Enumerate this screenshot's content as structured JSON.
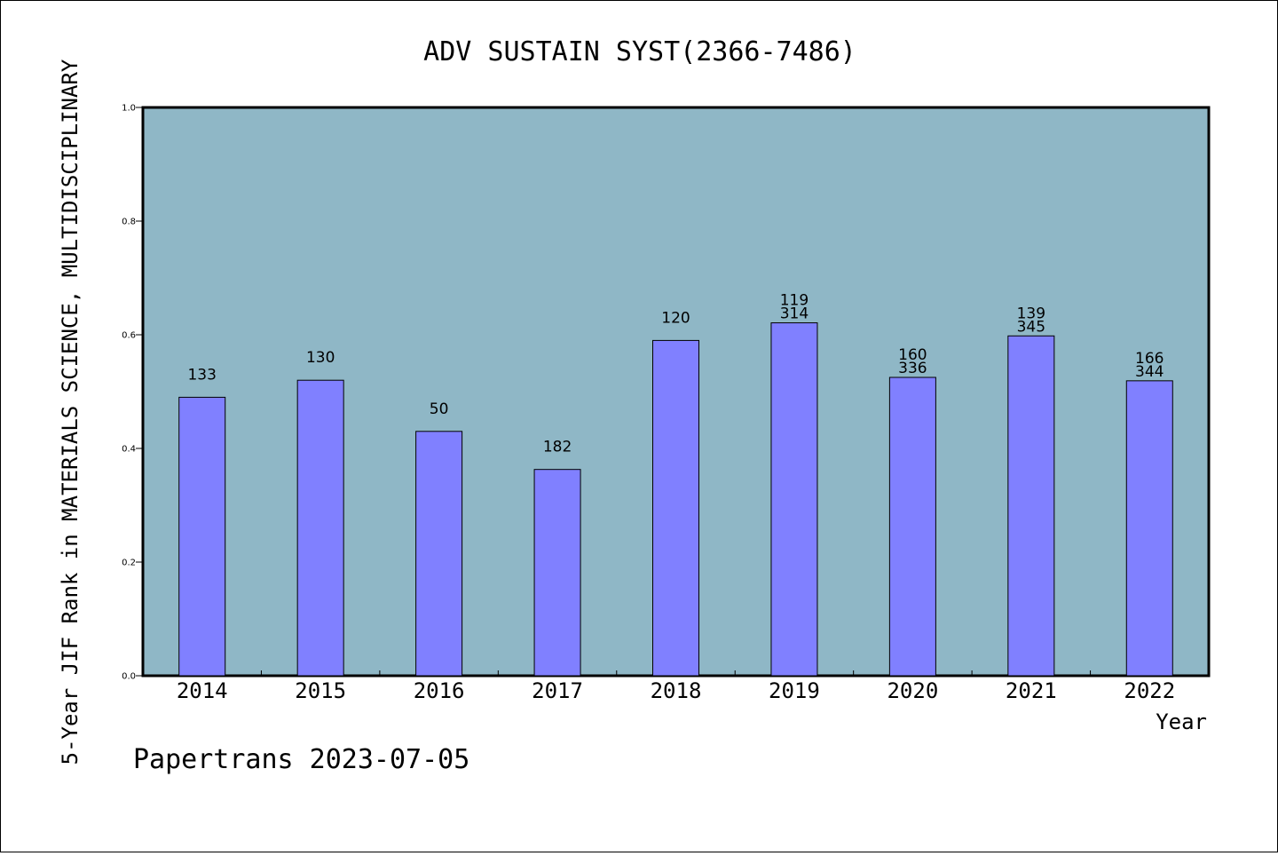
{
  "chart_data": {
    "type": "bar",
    "title": "ADV SUSTAIN SYST(2366-7486)",
    "xlabel": "Year",
    "ylabel": "5-Year JIF Rank in MATERIALS SCIENCE, MULTIDISCIPLINARY",
    "ylim": [
      0,
      1.0
    ],
    "yticks": [
      "0.0",
      "0.2",
      "0.4",
      "0.6",
      "0.8",
      "1.0"
    ],
    "categories": [
      "2014",
      "2015",
      "2016",
      "2017",
      "2018",
      "2019",
      "2020",
      "2021",
      "2022"
    ],
    "values": [
      0.49,
      0.52,
      0.43,
      0.363,
      0.59,
      0.621,
      0.525,
      0.598,
      0.519
    ],
    "bar_labels": [
      [
        "133"
      ],
      [
        "130"
      ],
      [
        "50"
      ],
      [
        "182"
      ],
      [
        "120"
      ],
      [
        "119",
        "314"
      ],
      [
        "160",
        "336"
      ],
      [
        "139",
        "345"
      ],
      [
        "166",
        "344"
      ]
    ],
    "grid": false,
    "colors": {
      "plot_background": "#8fb7c6",
      "bar": "#8080ff",
      "bar_edge": "#000000"
    }
  },
  "footer": "Papertrans 2023-07-05"
}
